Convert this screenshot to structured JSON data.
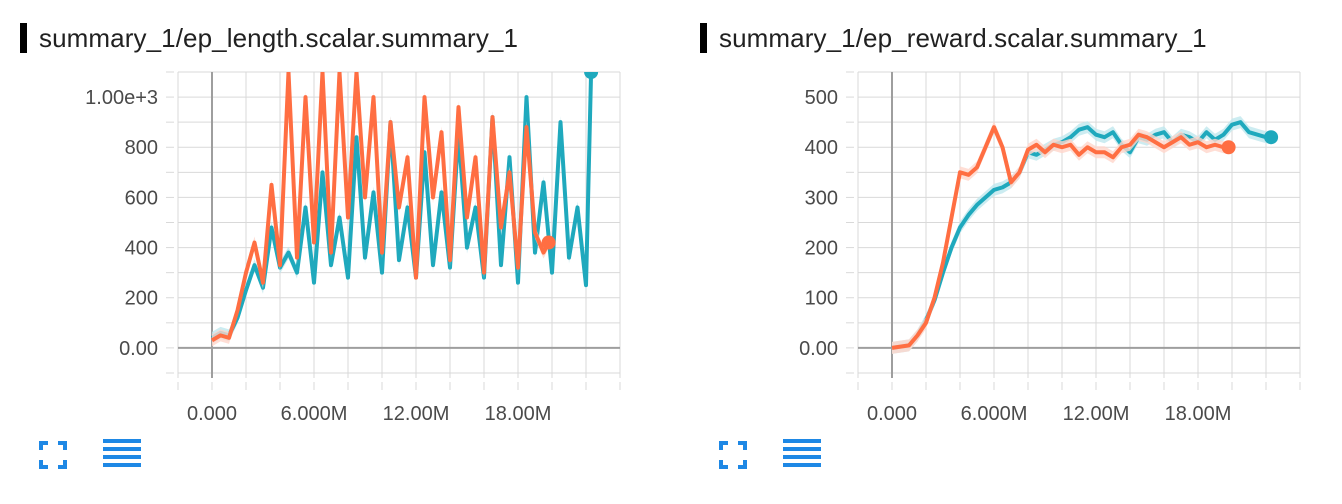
{
  "colors": {
    "teal": "#1fa9bd",
    "orange": "#ff6e42",
    "teal_band": "#bfe7ee",
    "orange_band": "#ffd6ca",
    "grid": "#d9d9d9",
    "zero_axis": "#9e9e9e",
    "icon_blue": "#1e88e5"
  },
  "icons": [
    "fullscreen-icon",
    "list-lines-icon"
  ],
  "charts": [
    {
      "title": "summary_1/ep_length.scalar.summary_1",
      "chart_data": {
        "type": "line",
        "xlabel": "",
        "ylabel": "",
        "xlim": [
          -2000000,
          24000000
        ],
        "ylim": [
          -120,
          1100
        ],
        "x_ticks": [
          0,
          6000000,
          12000000,
          18000000
        ],
        "x_tick_labels": [
          "0.000",
          "6.000M",
          "12.00M",
          "18.00M"
        ],
        "y_ticks": [
          0,
          200,
          400,
          600,
          800,
          1000
        ],
        "y_tick_labels": [
          "0.00",
          "200",
          "400",
          "600",
          "800",
          "1.00e+3"
        ],
        "grid": true,
        "series": [
          {
            "color": "#1fa9bd",
            "band_color": "#bfe7ee",
            "x": [
              0,
              500000,
              1000000,
              1500000,
              2000000,
              2500000,
              3000000,
              3500000,
              4000000,
              4500000,
              5000000,
              5500000,
              6000000,
              6500000,
              7000000,
              7500000,
              8000000,
              8500000,
              9000000,
              9500000,
              10000000,
              10500000,
              11000000,
              11500000,
              12000000,
              12500000,
              13000000,
              13500000,
              14000000,
              14500000,
              15000000,
              15500000,
              16000000,
              16500000,
              17000000,
              17500000,
              18000000,
              18500000,
              19000000,
              19500000,
              20000000,
              20500000,
              21000000,
              21500000,
              22000000,
              22300000
            ],
            "values": [
              40,
              60,
              50,
              120,
              230,
              330,
              240,
              480,
              320,
              380,
              300,
              560,
              260,
              700,
              330,
              520,
              280,
              840,
              360,
              620,
              300,
              900,
              350,
              560,
              280,
              780,
              330,
              620,
              320,
              860,
              400,
              560,
              280,
              920,
              330,
              760,
              260,
              1000,
              380,
              660,
              300,
              900,
              360,
              560,
              250,
              1100
            ]
          },
          {
            "color": "#ff6e42",
            "band_color": "#ffd6ca",
            "x": [
              0,
              500000,
              1000000,
              1500000,
              2000000,
              2500000,
              3000000,
              3500000,
              4000000,
              4500000,
              5000000,
              5500000,
              6000000,
              6500000,
              7000000,
              7500000,
              8000000,
              8500000,
              9000000,
              9500000,
              10000000,
              10500000,
              11000000,
              11500000,
              12000000,
              12500000,
              13000000,
              13500000,
              14000000,
              14500000,
              15000000,
              15500000,
              16000000,
              16500000,
              17000000,
              17500000,
              18000000,
              18500000,
              19000000,
              19500000,
              19800000
            ],
            "values": [
              30,
              50,
              40,
              150,
              300,
              420,
              260,
              650,
              330,
              1100,
              360,
              1000,
              420,
              1100,
              380,
              1100,
              520,
              1100,
              600,
              1000,
              380,
              900,
              560,
              760,
              280,
              1000,
              600,
              860,
              350,
              960,
              520,
              760,
              300,
              920,
              480,
              700,
              320,
              880,
              460,
              380,
              420
            ]
          }
        ]
      }
    },
    {
      "title": "summary_1/ep_reward.scalar.summary_1",
      "chart_data": {
        "type": "line",
        "xlabel": "",
        "ylabel": "",
        "xlim": [
          -2000000,
          24000000
        ],
        "ylim": [
          -60,
          550
        ],
        "x_ticks": [
          0,
          6000000,
          12000000,
          18000000
        ],
        "x_tick_labels": [
          "0.000",
          "6.000M",
          "12.00M",
          "18.00M"
        ],
        "y_ticks": [
          0,
          100,
          200,
          300,
          400,
          500
        ],
        "y_tick_labels": [
          "0.00",
          "100",
          "200",
          "300",
          "400",
          "500"
        ],
        "grid": true,
        "series": [
          {
            "color": "#1fa9bd",
            "band_color": "#bfe7ee",
            "x": [
              0,
              1000000,
              1500000,
              2000000,
              2500000,
              3000000,
              3500000,
              4000000,
              4500000,
              5000000,
              5500000,
              6000000,
              6500000,
              7000000,
              7500000,
              8000000,
              8500000,
              9000000,
              9500000,
              10000000,
              10500000,
              11000000,
              11500000,
              12000000,
              12500000,
              13000000,
              13500000,
              14000000,
              14500000,
              15000000,
              15500000,
              16000000,
              16500000,
              17000000,
              17500000,
              18000000,
              18500000,
              19000000,
              19500000,
              20000000,
              20500000,
              21000000,
              21500000,
              22000000,
              22300000
            ],
            "values": [
              0,
              5,
              25,
              55,
              95,
              150,
              200,
              240,
              265,
              285,
              300,
              315,
              320,
              330,
              350,
              390,
              385,
              395,
              405,
              410,
              420,
              435,
              440,
              425,
              420,
              430,
              405,
              390,
              420,
              415,
              425,
              430,
              410,
              425,
              420,
              410,
              430,
              415,
              425,
              445,
              450,
              430,
              425,
              420,
              420
            ]
          },
          {
            "color": "#ff6e42",
            "band_color": "#ffd6ca",
            "x": [
              0,
              1000000,
              1500000,
              2000000,
              2500000,
              3000000,
              3500000,
              4000000,
              4500000,
              5000000,
              5500000,
              6000000,
              6500000,
              7000000,
              7500000,
              8000000,
              8500000,
              9000000,
              9500000,
              10000000,
              10500000,
              11000000,
              11500000,
              12000000,
              12500000,
              13000000,
              13500000,
              14000000,
              14500000,
              15000000,
              15500000,
              16000000,
              16500000,
              17000000,
              17500000,
              18000000,
              18500000,
              19000000,
              19500000,
              19800000
            ],
            "values": [
              0,
              5,
              25,
              50,
              100,
              170,
              260,
              350,
              345,
              360,
              400,
              440,
              400,
              330,
              350,
              395,
              405,
              390,
              405,
              400,
              405,
              385,
              400,
              390,
              390,
              380,
              400,
              405,
              425,
              420,
              410,
              400,
              410,
              420,
              405,
              410,
              400,
              405,
              400,
              400
            ]
          }
        ]
      }
    }
  ]
}
